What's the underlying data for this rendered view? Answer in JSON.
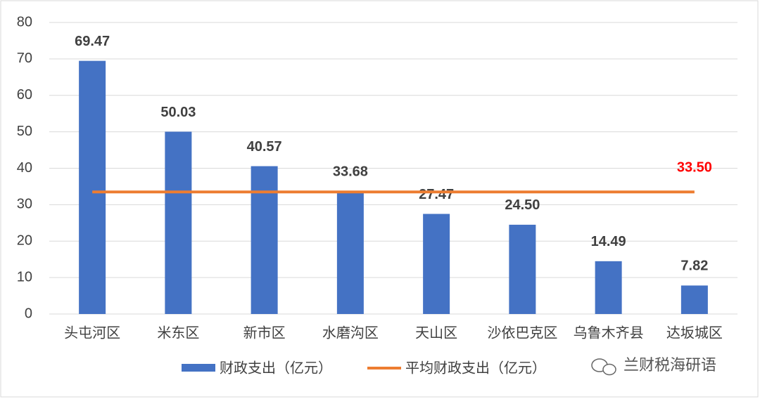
{
  "chart_data": {
    "type": "bar",
    "categories": [
      "头屯河区",
      "米东区",
      "新市区",
      "水磨沟区",
      "天山区",
      "沙依巴克区",
      "乌鲁木齐县",
      "达坂城区"
    ],
    "series": [
      {
        "name": "财政支出（亿元）",
        "type": "bar",
        "color": "#4472c4",
        "values": [
          69.47,
          50.03,
          40.57,
          33.68,
          27.47,
          24.5,
          14.49,
          7.82
        ],
        "value_labels": [
          "69.47",
          "50.03",
          "40.57",
          "33.68",
          "27.47",
          "24.50",
          "14.49",
          "7.82"
        ]
      },
      {
        "name": "平均财政支出（亿元）",
        "type": "line",
        "color": "#ed7d31",
        "label_color": "#ff0000",
        "values": [
          33.5,
          33.5,
          33.5,
          33.5,
          33.5,
          33.5,
          33.5,
          33.5
        ],
        "value_labels": [
          null,
          null,
          null,
          null,
          null,
          null,
          null,
          "33.50"
        ]
      }
    ],
    "ylim": [
      0,
      80
    ],
    "yticks": [
      0,
      10,
      20,
      30,
      40,
      50,
      60,
      70,
      80
    ],
    "grid": true,
    "legend": "bottom"
  },
  "watermark": "兰财税海研语"
}
